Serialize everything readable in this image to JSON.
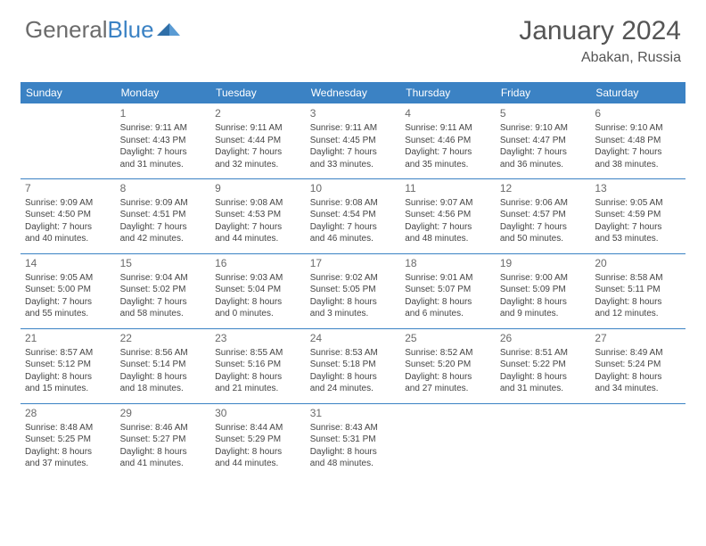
{
  "logo": {
    "text1": "General",
    "text2": "Blue"
  },
  "title": "January 2024",
  "location": "Abakan, Russia",
  "colors": {
    "header_bg": "#3b82c4",
    "header_text": "#ffffff",
    "text": "#444444",
    "divider": "#3b82c4",
    "page_bg": "#ffffff"
  },
  "headers": [
    "Sunday",
    "Monday",
    "Tuesday",
    "Wednesday",
    "Thursday",
    "Friday",
    "Saturday"
  ],
  "weeks": [
    [
      {
        "num": "",
        "info": ""
      },
      {
        "num": "1",
        "info": "Sunrise: 9:11 AM\nSunset: 4:43 PM\nDaylight: 7 hours\nand 31 minutes."
      },
      {
        "num": "2",
        "info": "Sunrise: 9:11 AM\nSunset: 4:44 PM\nDaylight: 7 hours\nand 32 minutes."
      },
      {
        "num": "3",
        "info": "Sunrise: 9:11 AM\nSunset: 4:45 PM\nDaylight: 7 hours\nand 33 minutes."
      },
      {
        "num": "4",
        "info": "Sunrise: 9:11 AM\nSunset: 4:46 PM\nDaylight: 7 hours\nand 35 minutes."
      },
      {
        "num": "5",
        "info": "Sunrise: 9:10 AM\nSunset: 4:47 PM\nDaylight: 7 hours\nand 36 minutes."
      },
      {
        "num": "6",
        "info": "Sunrise: 9:10 AM\nSunset: 4:48 PM\nDaylight: 7 hours\nand 38 minutes."
      }
    ],
    [
      {
        "num": "7",
        "info": "Sunrise: 9:09 AM\nSunset: 4:50 PM\nDaylight: 7 hours\nand 40 minutes."
      },
      {
        "num": "8",
        "info": "Sunrise: 9:09 AM\nSunset: 4:51 PM\nDaylight: 7 hours\nand 42 minutes."
      },
      {
        "num": "9",
        "info": "Sunrise: 9:08 AM\nSunset: 4:53 PM\nDaylight: 7 hours\nand 44 minutes."
      },
      {
        "num": "10",
        "info": "Sunrise: 9:08 AM\nSunset: 4:54 PM\nDaylight: 7 hours\nand 46 minutes."
      },
      {
        "num": "11",
        "info": "Sunrise: 9:07 AM\nSunset: 4:56 PM\nDaylight: 7 hours\nand 48 minutes."
      },
      {
        "num": "12",
        "info": "Sunrise: 9:06 AM\nSunset: 4:57 PM\nDaylight: 7 hours\nand 50 minutes."
      },
      {
        "num": "13",
        "info": "Sunrise: 9:05 AM\nSunset: 4:59 PM\nDaylight: 7 hours\nand 53 minutes."
      }
    ],
    [
      {
        "num": "14",
        "info": "Sunrise: 9:05 AM\nSunset: 5:00 PM\nDaylight: 7 hours\nand 55 minutes."
      },
      {
        "num": "15",
        "info": "Sunrise: 9:04 AM\nSunset: 5:02 PM\nDaylight: 7 hours\nand 58 minutes."
      },
      {
        "num": "16",
        "info": "Sunrise: 9:03 AM\nSunset: 5:04 PM\nDaylight: 8 hours\nand 0 minutes."
      },
      {
        "num": "17",
        "info": "Sunrise: 9:02 AM\nSunset: 5:05 PM\nDaylight: 8 hours\nand 3 minutes."
      },
      {
        "num": "18",
        "info": "Sunrise: 9:01 AM\nSunset: 5:07 PM\nDaylight: 8 hours\nand 6 minutes."
      },
      {
        "num": "19",
        "info": "Sunrise: 9:00 AM\nSunset: 5:09 PM\nDaylight: 8 hours\nand 9 minutes."
      },
      {
        "num": "20",
        "info": "Sunrise: 8:58 AM\nSunset: 5:11 PM\nDaylight: 8 hours\nand 12 minutes."
      }
    ],
    [
      {
        "num": "21",
        "info": "Sunrise: 8:57 AM\nSunset: 5:12 PM\nDaylight: 8 hours\nand 15 minutes."
      },
      {
        "num": "22",
        "info": "Sunrise: 8:56 AM\nSunset: 5:14 PM\nDaylight: 8 hours\nand 18 minutes."
      },
      {
        "num": "23",
        "info": "Sunrise: 8:55 AM\nSunset: 5:16 PM\nDaylight: 8 hours\nand 21 minutes."
      },
      {
        "num": "24",
        "info": "Sunrise: 8:53 AM\nSunset: 5:18 PM\nDaylight: 8 hours\nand 24 minutes."
      },
      {
        "num": "25",
        "info": "Sunrise: 8:52 AM\nSunset: 5:20 PM\nDaylight: 8 hours\nand 27 minutes."
      },
      {
        "num": "26",
        "info": "Sunrise: 8:51 AM\nSunset: 5:22 PM\nDaylight: 8 hours\nand 31 minutes."
      },
      {
        "num": "27",
        "info": "Sunrise: 8:49 AM\nSunset: 5:24 PM\nDaylight: 8 hours\nand 34 minutes."
      }
    ],
    [
      {
        "num": "28",
        "info": "Sunrise: 8:48 AM\nSunset: 5:25 PM\nDaylight: 8 hours\nand 37 minutes."
      },
      {
        "num": "29",
        "info": "Sunrise: 8:46 AM\nSunset: 5:27 PM\nDaylight: 8 hours\nand 41 minutes."
      },
      {
        "num": "30",
        "info": "Sunrise: 8:44 AM\nSunset: 5:29 PM\nDaylight: 8 hours\nand 44 minutes."
      },
      {
        "num": "31",
        "info": "Sunrise: 8:43 AM\nSunset: 5:31 PM\nDaylight: 8 hours\nand 48 minutes."
      },
      {
        "num": "",
        "info": ""
      },
      {
        "num": "",
        "info": ""
      },
      {
        "num": "",
        "info": ""
      }
    ]
  ]
}
